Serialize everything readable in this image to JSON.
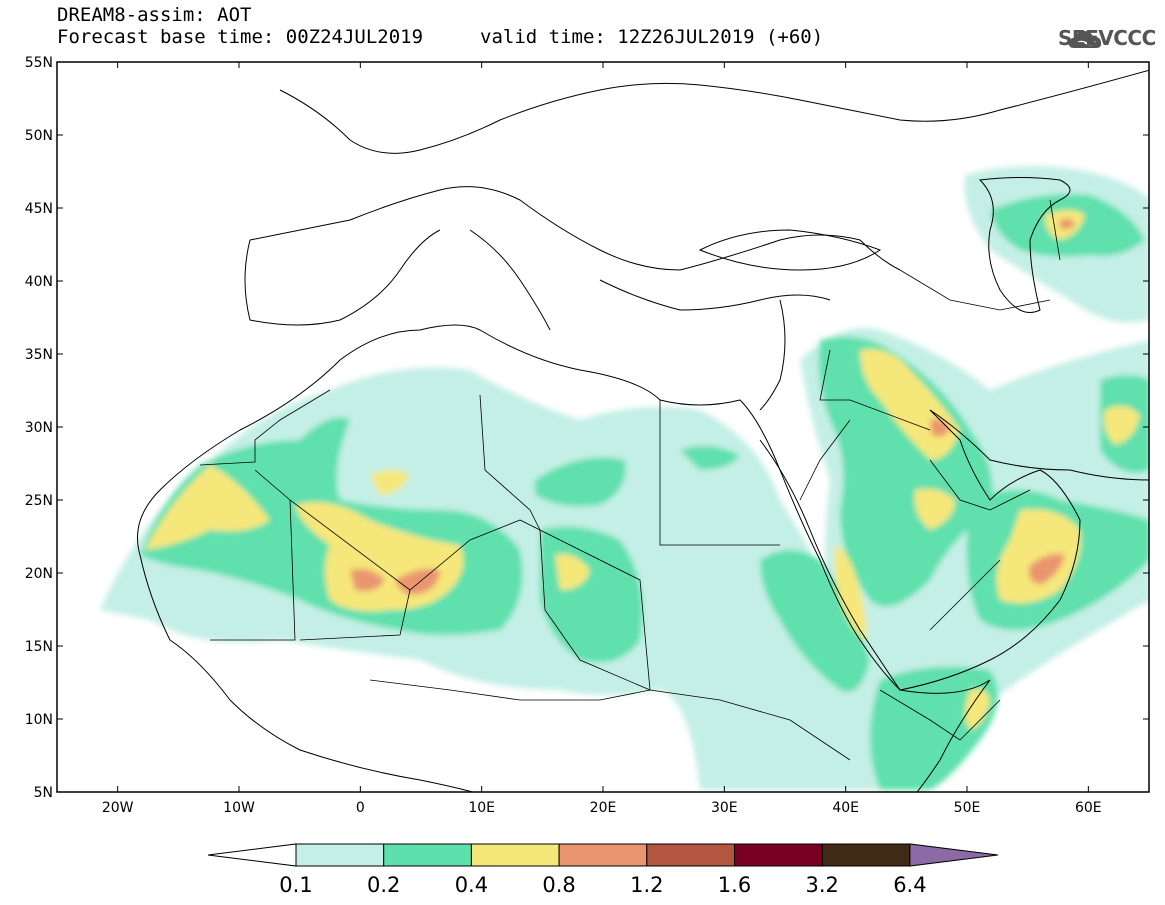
{
  "header": {
    "title_line1": "DREAM8-assim: AOT",
    "title_line2": "Forecast base time: 00Z24JUL2019",
    "valid_time": "valid time: 12Z26JUL2019 (+60)",
    "logo_text": "SEEVCCC"
  },
  "map": {
    "region": "North Africa, Middle East, Southern Europe",
    "lon_range": [
      -25,
      65
    ],
    "lat_range": [
      5,
      55
    ],
    "lon_ticks": [
      "20W",
      "10W",
      "0",
      "10E",
      "20E",
      "30E",
      "40E",
      "50E",
      "60E"
    ],
    "lat_ticks": [
      "5N",
      "10N",
      "15N",
      "20N",
      "25N",
      "30N",
      "35N",
      "40N",
      "45N",
      "50N",
      "55N"
    ],
    "field": "Aerosol optical thickness (dust)"
  },
  "colorbar": {
    "levels": [
      "0.1",
      "0.2",
      "0.4",
      "0.8",
      "1.2",
      "1.6",
      "3.2",
      "6.4"
    ],
    "colors": [
      "#c4efe6",
      "#5ee0ad",
      "#f6e77a",
      "#e99670",
      "#b45540",
      "#7a0021",
      "#402a15",
      "#8c6aa6"
    ]
  }
}
